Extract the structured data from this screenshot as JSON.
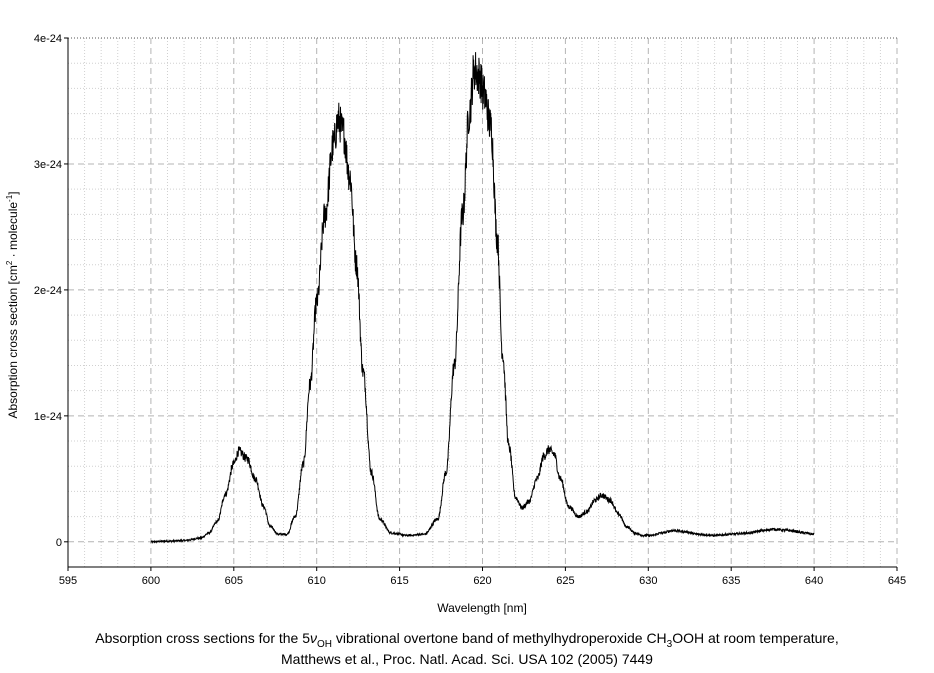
{
  "chart_data": {
    "type": "line",
    "title": "",
    "xlabel": "Wavelength [nm]",
    "ylabel_parts": [
      "Absorption cross section [cm",
      "2",
      " · molecule",
      "-1",
      "]"
    ],
    "xlim": [
      595,
      645
    ],
    "ylim": [
      -2e-25,
      4e-24
    ],
    "x_ticks": [
      595,
      600,
      605,
      610,
      615,
      620,
      625,
      630,
      635,
      640,
      645
    ],
    "x_tick_labels": [
      "595",
      "600",
      "605",
      "610",
      "615",
      "620",
      "625",
      "630",
      "635",
      "640",
      "645"
    ],
    "y_ticks": [
      0,
      1e-24,
      2e-24,
      3e-24,
      4e-24
    ],
    "y_tick_labels": [
      "0",
      "1e-24",
      "2e-24",
      "3e-24",
      "4e-24"
    ],
    "grid": true,
    "legend": "none",
    "line_color": "#000000",
    "series": [
      {
        "x": [
          600,
          601,
          602,
          603,
          603.5,
          604,
          604.5,
          605,
          605.3,
          605.8,
          606.3,
          606.8,
          607.2,
          607.7,
          608.2,
          608.7,
          609.2,
          609.6,
          610.0,
          610.5,
          611.0,
          611.3,
          611.6,
          612.0,
          612.4,
          612.8,
          613.3,
          613.8,
          614.5,
          615.5,
          616.5,
          617.3,
          617.8,
          618.3,
          618.8,
          619.2,
          619.5,
          619.8,
          620.1,
          620.5,
          620.9,
          621.2,
          621.6,
          622.0,
          622.4,
          622.8,
          623.3,
          623.7,
          624.0,
          624.3,
          624.7,
          625.2,
          625.8,
          626.3,
          626.8,
          627.2,
          627.7,
          628.2,
          628.7,
          629.2,
          629.7,
          630.2,
          630.8,
          631.5,
          632.2,
          633.0,
          634.0,
          635.0,
          636.0,
          637.0,
          637.5,
          638.5,
          639.5,
          640.0
        ],
        "y": [
          0,
          5e-27,
          1e-26,
          3e-26,
          7e-26,
          1.6e-25,
          3.8e-25,
          6.2e-25,
          7.2e-25,
          6.6e-25,
          5e-25,
          2.8e-25,
          1.2e-25,
          6e-26,
          6e-26,
          2e-25,
          6.2e-25,
          1.25e-24,
          1.9e-24,
          2.6e-24,
          3.15e-24,
          3.35e-24,
          3.25e-24,
          2.9e-24,
          2.2e-24,
          1.35e-24,
          5.5e-25,
          1.8e-25,
          7e-26,
          5e-26,
          6e-26,
          1.8e-25,
          5.5e-25,
          1.4e-24,
          2.6e-24,
          3.4e-24,
          3.75e-24,
          3.7e-24,
          3.55e-24,
          3.3e-24,
          2.4e-24,
          1.5e-24,
          7.5e-25,
          3.5e-25,
          2.7e-25,
          3.2e-25,
          5e-25,
          6.8e-25,
          7.3e-25,
          7e-25,
          5e-25,
          2.8e-25,
          2e-25,
          2.4e-25,
          3.3e-25,
          3.7e-25,
          3.3e-25,
          2.2e-25,
          1.2e-25,
          7e-26,
          5e-26,
          5e-26,
          7e-26,
          9e-26,
          8e-26,
          6e-26,
          5e-26,
          6e-26,
          7e-26,
          9e-26,
          1e-25,
          9e-26,
          7e-26,
          6e-26
        ]
      }
    ]
  },
  "caption": {
    "line1_before": "Absorption cross sections for the 5",
    "nu_symbol": "ν",
    "nu_sub": "OH",
    "line1_middle": " vibrational overtone band of methylhydroperoxide CH",
    "ch_sub": "3",
    "line1_after": "OOH at room temperature,",
    "line2": "Matthews et al.,  Proc. Natl. Acad. Sci. USA 102 (2005) 7449"
  }
}
